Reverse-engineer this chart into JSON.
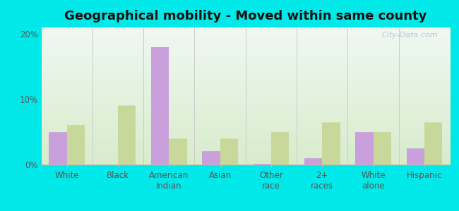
{
  "title": "Geographical mobility - Moved within same county",
  "categories": [
    "White",
    "Black",
    "American\nIndian",
    "Asian",
    "Other\nrace",
    "2+\nraces",
    "White\nalone",
    "Hispanic"
  ],
  "los_alamos": [
    5.0,
    0.0,
    18.0,
    2.0,
    0.1,
    1.0,
    5.0,
    2.5
  ],
  "new_mexico": [
    6.0,
    9.0,
    4.0,
    4.0,
    5.0,
    6.5,
    5.0,
    6.5
  ],
  "color_la": "#c9a0dc",
  "color_nm": "#c8d89a",
  "bg_outer": "#00e8e8",
  "bg_plot_topleft": "#e0ede0",
  "bg_plot_topright": "#d8ece8",
  "bg_plot_bottom": "#c8dcc0",
  "ylim": [
    0,
    21
  ],
  "yticks": [
    0,
    10,
    20
  ],
  "ytick_labels": [
    "0%",
    "10%",
    "20%"
  ],
  "bar_width": 0.35,
  "title_fontsize": 13,
  "tick_fontsize": 8.5,
  "legend_fontsize": 9,
  "watermark": "City-Data.com"
}
